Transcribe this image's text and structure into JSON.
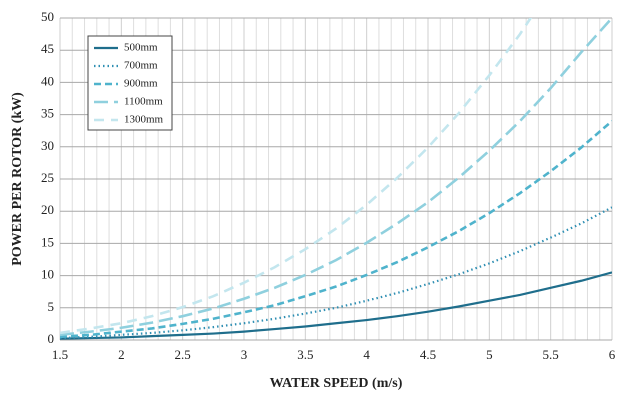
{
  "chart_data": {
    "type": "line",
    "x_label": "WATER SPEED (m/s)",
    "y_label": "POWER PER ROTOR (kW)",
    "x": [
      1.5,
      1.75,
      2,
      2.25,
      2.5,
      2.75,
      3,
      3.25,
      3.5,
      3.75,
      4,
      4.25,
      4.5,
      4.75,
      5,
      5.25,
      5.5,
      5.75,
      6
    ],
    "series": [
      {
        "name": "500mm",
        "color": "#1f6e8c",
        "dash": "solid",
        "values": [
          0.2,
          0.3,
          0.4,
          0.6,
          0.8,
          1.0,
          1.3,
          1.7,
          2.1,
          2.6,
          3.1,
          3.7,
          4.4,
          5.2,
          6.1,
          7.0,
          8.1,
          9.2,
          10.5
        ]
      },
      {
        "name": "700mm",
        "color": "#2f8fb3",
        "dash": "dotted",
        "values": [
          0.3,
          0.5,
          0.8,
          1.1,
          1.5,
          2.0,
          2.6,
          3.3,
          4.1,
          5.0,
          6.1,
          7.3,
          8.7,
          10.2,
          11.9,
          13.8,
          15.9,
          18.1,
          20.6
        ]
      },
      {
        "name": "900mm",
        "color": "#4fb3cc",
        "dash": "dashed",
        "values": [
          0.5,
          0.8,
          1.3,
          1.8,
          2.5,
          3.3,
          4.3,
          5.4,
          6.8,
          8.3,
          10.1,
          12.1,
          14.4,
          16.9,
          19.7,
          22.8,
          26.2,
          29.9,
          34.0
        ]
      },
      {
        "name": "1100mm",
        "color": "#8fd0de",
        "dash": "longdash",
        "values": [
          0.8,
          1.3,
          1.9,
          2.7,
          3.7,
          4.9,
          6.4,
          8.1,
          10.1,
          12.4,
          15.1,
          18.1,
          21.4,
          25.2,
          29.4,
          34.0,
          39.1,
          44.7,
          50
        ]
      },
      {
        "name": "1300mm",
        "color": "#c3e6ee",
        "dash": "dashdot",
        "values": [
          1.1,
          1.8,
          2.6,
          3.7,
          5.1,
          6.8,
          8.9,
          11.3,
          14.1,
          17.3,
          21.0,
          25.2,
          29.9,
          35.2,
          41.1,
          47.5,
          54.7,
          null,
          null
        ]
      }
    ],
    "xlim": [
      1.5,
      6
    ],
    "xticks": [
      1.5,
      2,
      2.5,
      3,
      3.5,
      4,
      4.5,
      5,
      5.5,
      6
    ],
    "ylim": [
      0,
      50
    ],
    "yticks": [
      0,
      5,
      10,
      15,
      20,
      25,
      30,
      35,
      40,
      45,
      50
    ],
    "grid": true,
    "legend": "upper left"
  }
}
